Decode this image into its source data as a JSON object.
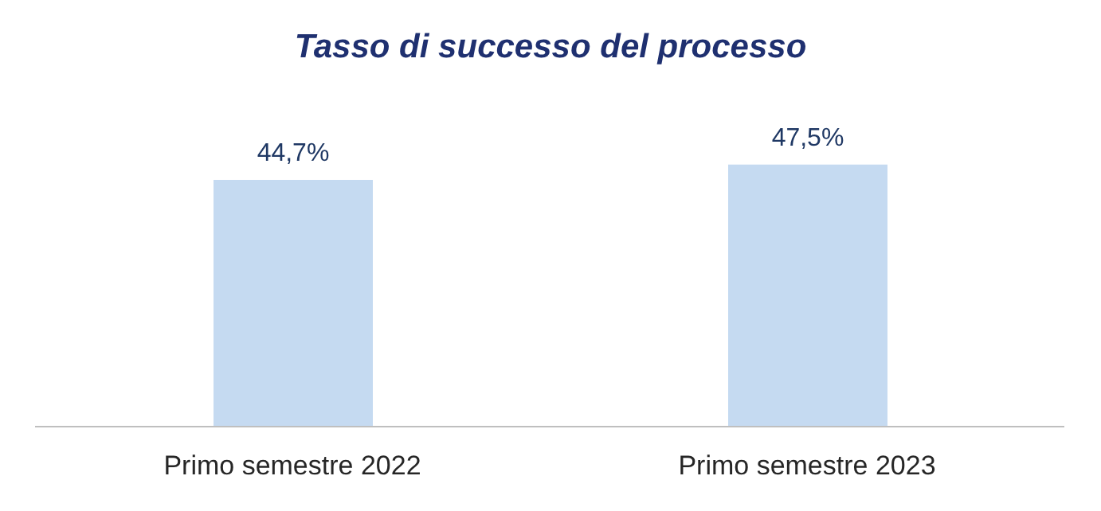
{
  "chart_data": {
    "type": "bar",
    "title": "Tasso di successo del processo",
    "categories": [
      "Primo semestre 2022",
      "Primo semestre 2023"
    ],
    "values": [
      44.7,
      47.5
    ],
    "value_labels": [
      "44,7%",
      "47,5%"
    ],
    "color": "#c5daf1"
  }
}
